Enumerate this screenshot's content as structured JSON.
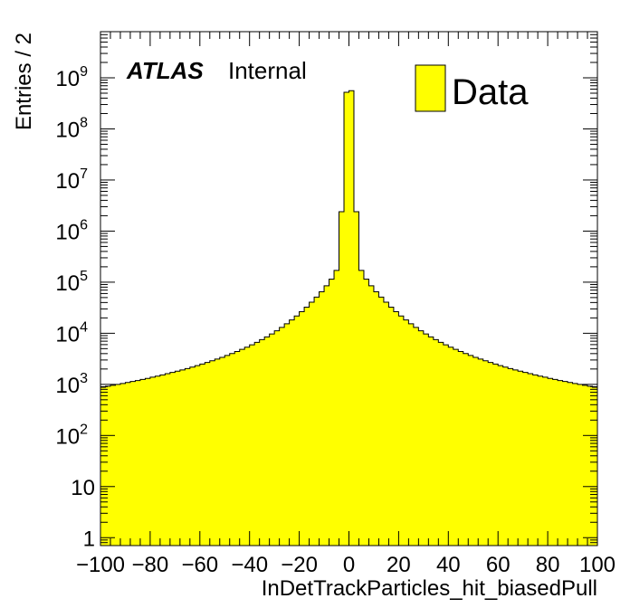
{
  "chart_data": {
    "type": "histogram",
    "xlabel": "InDetTrackParticles_hit_biasedPull",
    "ylabel": "Entries / 2",
    "xlim": [
      -100,
      100
    ],
    "ylim": [
      0.7,
      8000000000
    ],
    "yscale": "log",
    "bin_width": 2,
    "x_ticks": [
      "−100",
      "−80",
      "−60",
      "−40",
      "−20",
      "0",
      "20",
      "40",
      "60",
      "80",
      "100"
    ],
    "y_ticks": [
      {
        "base": "1",
        "exp": ""
      },
      {
        "base": "10",
        "exp": ""
      },
      {
        "base": "10",
        "exp": "2"
      },
      {
        "base": "10",
        "exp": "3"
      },
      {
        "base": "10",
        "exp": "4"
      },
      {
        "base": "10",
        "exp": "5"
      },
      {
        "base": "10",
        "exp": "6"
      },
      {
        "base": "10",
        "exp": "7"
      },
      {
        "base": "10",
        "exp": "8"
      },
      {
        "base": "10",
        "exp": "9"
      }
    ],
    "series": [
      {
        "name": "Data",
        "color": "#ffff00",
        "bin_edges_start": -100,
        "values": [
          880,
          920,
          960,
          1000,
          1040,
          1090,
          1140,
          1190,
          1250,
          1310,
          1380,
          1450,
          1530,
          1620,
          1710,
          1810,
          1920,
          2040,
          2180,
          2330,
          2500,
          2680,
          2890,
          3120,
          3380,
          3680,
          4020,
          4400,
          4850,
          5350,
          5950,
          6650,
          7500,
          8500,
          9700,
          11200,
          13000,
          15300,
          18200,
          21800,
          26500,
          32500,
          40500,
          51000,
          65000,
          85000,
          115000,
          170000,
          2400000,
          520000000,
          560000000,
          2400000,
          170000,
          115000,
          85000,
          65000,
          51000,
          40500,
          32500,
          26500,
          21800,
          18200,
          15300,
          13000,
          11200,
          9700,
          8500,
          7500,
          6650,
          5950,
          5350,
          4850,
          4400,
          4020,
          3680,
          3380,
          3120,
          2890,
          2680,
          2500,
          2330,
          2180,
          2040,
          1920,
          1810,
          1710,
          1620,
          1530,
          1450,
          1380,
          1310,
          1250,
          1190,
          1140,
          1090,
          1040,
          1000,
          960,
          920,
          880
        ]
      }
    ],
    "legend": {
      "position": "top-right",
      "label": "Data"
    }
  },
  "annotation": {
    "experiment": "ATLAS",
    "status": "Internal"
  }
}
